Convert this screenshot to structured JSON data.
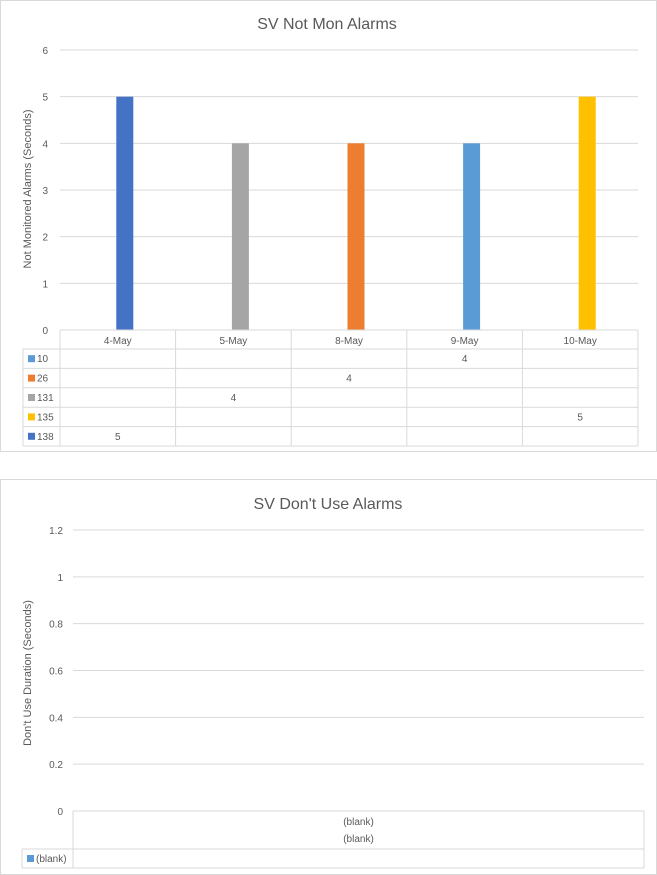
{
  "chart_data": [
    {
      "type": "bar",
      "title": "SV Not Mon Alarms",
      "xlabel": "",
      "ylabel": "Not Monitored Alarms (Seconds)",
      "ylim": [
        0,
        6
      ],
      "yticks": [
        "0",
        "1",
        "2",
        "3",
        "4",
        "5",
        "6"
      ],
      "grid": true,
      "legend": "data table",
      "categories": [
        "4-May",
        "5-May",
        "8-May",
        "9-May",
        "10-May"
      ],
      "series": [
        {
          "name": "10",
          "color": "#5b9bd5",
          "values": [
            null,
            null,
            null,
            4,
            null
          ]
        },
        {
          "name": "26",
          "color": "#ed7d31",
          "values": [
            null,
            null,
            4,
            null,
            null
          ]
        },
        {
          "name": "131",
          "color": "#a5a5a5",
          "values": [
            null,
            4,
            null,
            null,
            null
          ]
        },
        {
          "name": "135",
          "color": "#ffc000",
          "values": [
            null,
            null,
            null,
            null,
            5
          ]
        },
        {
          "name": "138",
          "color": "#4472c4",
          "values": [
            5,
            null,
            null,
            null,
            null
          ]
        }
      ]
    },
    {
      "type": "bar",
      "title": "SV Don't Use Alarms",
      "xlabel": "",
      "ylabel": "Don't Use Duration (Seconds)",
      "ylim": [
        0,
        1.2
      ],
      "yticks": [
        "0",
        "0.2",
        "0.4",
        "0.6",
        "0.8",
        "1",
        "1.2"
      ],
      "grid": true,
      "legend": "data table",
      "categories": [
        "(blank)"
      ],
      "category_row2": "(blank)",
      "series": [
        {
          "name": "(blank)",
          "color": "#5b9bd5",
          "values": [
            null
          ]
        }
      ]
    }
  ]
}
